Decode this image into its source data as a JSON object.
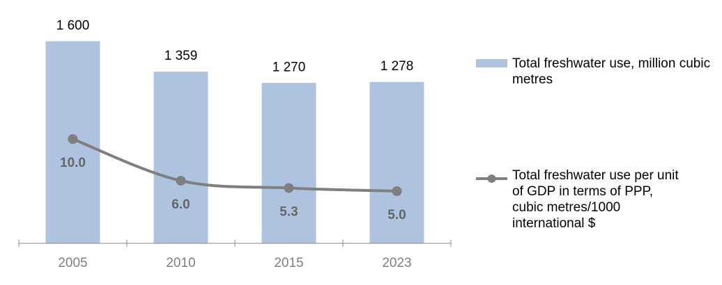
{
  "chart_data": {
    "type": "bar-line",
    "categories": [
      "2005",
      "2010",
      "2015",
      "2023"
    ],
    "series": [
      {
        "name": "Total freshwater use, million cubic metres",
        "type": "bar",
        "color": "#adc3e0",
        "values": [
          1600,
          1359,
          1270,
          1278
        ],
        "value_labels": [
          "1 600",
          "1 359",
          "1 270",
          "1 278"
        ]
      },
      {
        "name": "Total freshwater use per unit of GDP in terms of PPP, cubic metres/1000 international $",
        "type": "line",
        "axis": "y2",
        "color": "#7f7f7f",
        "values": [
          10.0,
          6.0,
          5.3,
          5.0
        ],
        "value_labels": [
          "10.0",
          "6.0",
          "5.3",
          "5.0"
        ]
      }
    ],
    "ylim": [
      0,
      1800
    ],
    "y2lim": [
      0,
      21.8
    ],
    "legend": "right"
  }
}
